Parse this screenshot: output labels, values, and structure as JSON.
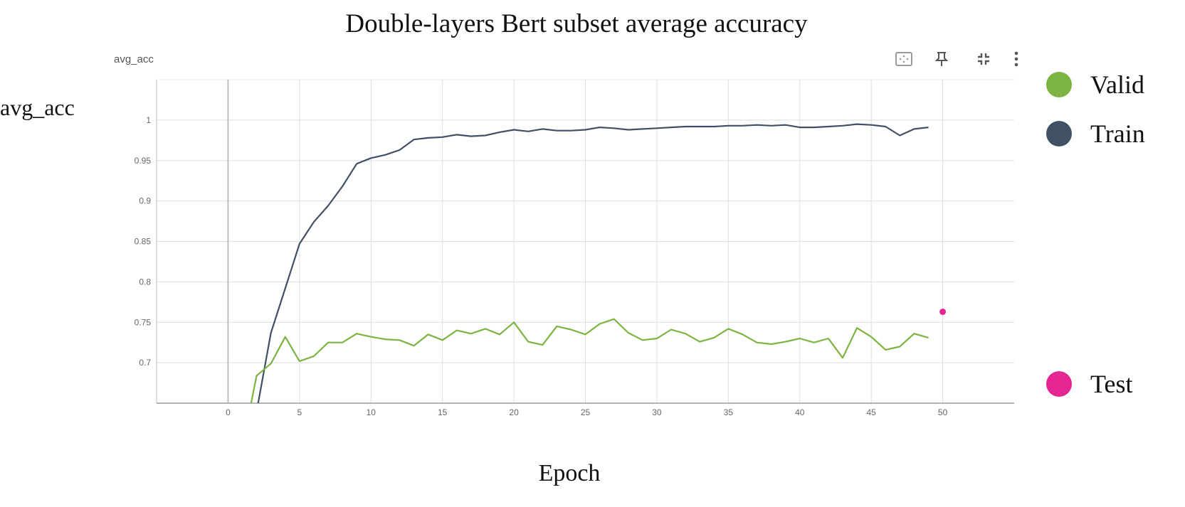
{
  "title": "Double-layers Bert subset average accuracy",
  "panel_name": "avg_acc",
  "ylabel": "avg_acc",
  "xlabel": "Epoch",
  "toolbar": {
    "icons": [
      "fit-domain-icon",
      "pin-icon",
      "collapse-icon",
      "more-vert-icon"
    ]
  },
  "legend": {
    "items": [
      {
        "label": "Valid",
        "color": "#7cb342"
      },
      {
        "label": "Train",
        "color": "#425066"
      },
      {
        "label": "Test",
        "color": "#e52592"
      }
    ]
  },
  "chart_data": {
    "type": "line",
    "title": "Double-layers Bert subset average accuracy",
    "xlabel": "Epoch",
    "ylabel": "avg_acc",
    "xlim": [
      -5,
      55
    ],
    "ylim": [
      0.65,
      1.05
    ],
    "x_ticks": [
      0,
      5,
      10,
      15,
      20,
      25,
      30,
      35,
      40,
      45,
      50
    ],
    "y_ticks": [
      0.7,
      0.75,
      0.8,
      0.85,
      0.9,
      0.95,
      1
    ],
    "y_tick_labels": [
      "0.7",
      "0.75",
      "0.8",
      "0.85",
      "0.9",
      "0.95",
      "1"
    ],
    "grid": true,
    "legend_position": "right",
    "series": [
      {
        "name": "Train",
        "color": "#425066",
        "x": [
          2,
          3,
          4,
          5,
          6,
          7,
          8,
          9,
          10,
          11,
          12,
          13,
          14,
          15,
          16,
          17,
          18,
          19,
          20,
          21,
          22,
          23,
          24,
          25,
          26,
          27,
          28,
          29,
          30,
          31,
          32,
          33,
          34,
          35,
          36,
          37,
          38,
          39,
          40,
          41,
          42,
          43,
          44,
          45,
          46,
          47,
          48,
          49
        ],
        "values": [
          0.64,
          0.737,
          0.792,
          0.847,
          0.874,
          0.894,
          0.918,
          0.946,
          0.953,
          0.957,
          0.963,
          0.976,
          0.978,
          0.979,
          0.982,
          0.98,
          0.981,
          0.985,
          0.988,
          0.986,
          0.989,
          0.987,
          0.987,
          0.988,
          0.991,
          0.99,
          0.988,
          0.989,
          0.99,
          0.991,
          0.992,
          0.992,
          0.992,
          0.993,
          0.993,
          0.994,
          0.993,
          0.994,
          0.991,
          0.991,
          0.992,
          0.993,
          0.995,
          0.994,
          0.992,
          0.981,
          0.989,
          0.991
        ]
      },
      {
        "name": "Valid",
        "color": "#7cb342",
        "x": [
          1.5,
          2,
          3,
          4,
          5,
          6,
          7,
          8,
          9,
          10,
          11,
          12,
          13,
          14,
          15,
          16,
          17,
          18,
          19,
          20,
          21,
          22,
          23,
          24,
          25,
          26,
          27,
          28,
          29,
          30,
          31,
          32,
          33,
          34,
          35,
          36,
          37,
          38,
          39,
          40,
          41,
          42,
          43,
          44,
          45,
          46,
          47,
          48,
          49
        ],
        "values": [
          0.64,
          0.684,
          0.699,
          0.732,
          0.702,
          0.708,
          0.725,
          0.725,
          0.736,
          0.732,
          0.729,
          0.728,
          0.721,
          0.735,
          0.728,
          0.74,
          0.736,
          0.742,
          0.735,
          0.75,
          0.726,
          0.722,
          0.745,
          0.741,
          0.735,
          0.748,
          0.754,
          0.737,
          0.728,
          0.73,
          0.741,
          0.736,
          0.726,
          0.731,
          0.742,
          0.735,
          0.725,
          0.723,
          0.726,
          0.73,
          0.725,
          0.73,
          0.706,
          0.743,
          0.732,
          0.716,
          0.72,
          0.736,
          0.731
        ]
      },
      {
        "name": "Test",
        "color": "#e52592",
        "x": [
          50
        ],
        "values": [
          0.763
        ]
      }
    ]
  }
}
